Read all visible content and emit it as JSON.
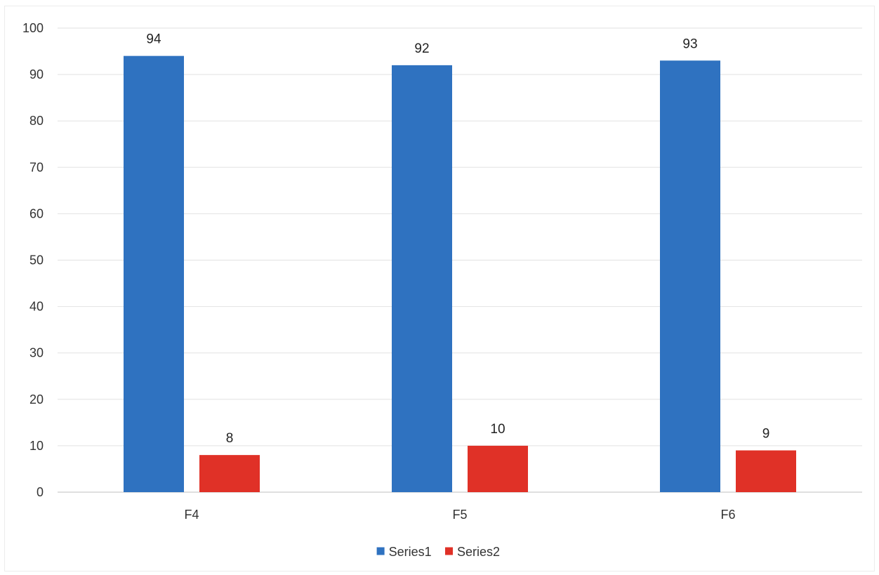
{
  "chart_data": {
    "type": "bar",
    "title": "",
    "xlabel": "",
    "ylabel": "",
    "categories": [
      "F4",
      "F5",
      "F6"
    ],
    "series": [
      {
        "name": "Series1",
        "values": [
          94,
          92,
          93
        ],
        "color": "#2f72c0"
      },
      {
        "name": "Series2",
        "values": [
          8,
          10,
          9
        ],
        "color": "#e03127"
      }
    ],
    "ylim": [
      0,
      100
    ],
    "yticks": [
      0,
      10,
      20,
      30,
      40,
      50,
      60,
      70,
      80,
      90,
      100
    ],
    "grid": true,
    "data_labels": true,
    "legend": {
      "position": "bottom"
    }
  }
}
